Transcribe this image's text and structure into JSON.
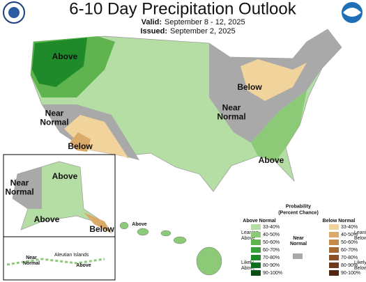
{
  "header": {
    "title": "6-10 Day Precipitation Outlook",
    "valid_label": "Valid:",
    "valid_dates": "September 8 - 12, 2025",
    "issued_label": "Issued:",
    "issued_date": "September 2, 2025"
  },
  "conus_labels": [
    [
      "Above"
    ],
    [
      "Near",
      "Normal"
    ],
    [
      "Below"
    ],
    [
      "Near",
      "Normal"
    ],
    [
      "Below"
    ],
    [
      "Above"
    ]
  ],
  "alaska_labels": [
    [
      "Near",
      "Normal"
    ],
    [
      "Above"
    ],
    [
      "Above"
    ],
    [
      "Below"
    ]
  ],
  "aleutian_labels": [
    [
      "Near",
      "Normal"
    ],
    [
      "Aleutian Islands"
    ],
    [
      "Above"
    ]
  ],
  "hawaii_labels": [
    [
      "Above"
    ]
  ],
  "legend": {
    "title": [
      "Probability",
      "(Percent Chance)"
    ],
    "above_heading": "Above Normal",
    "near_heading": [
      "Near",
      "Normal"
    ],
    "below_heading": "Below Normal",
    "leaning_above": [
      "Leaning",
      "Above"
    ],
    "likely_above": [
      "Likely",
      "Above"
    ],
    "leaning_below": [
      "Leaning",
      "Below"
    ],
    "likely_below": [
      "Likely",
      "Below"
    ],
    "above_bins": [
      {
        "label": "33-40%",
        "color": "#b4dea4"
      },
      {
        "label": "40-50%",
        "color": "#8cca78"
      },
      {
        "label": "50-60%",
        "color": "#5fb44f"
      },
      {
        "label": "60-70%",
        "color": "#38a03a"
      },
      {
        "label": "70-80%",
        "color": "#1e8a2a"
      },
      {
        "label": "80-90%",
        "color": "#0f6e20"
      },
      {
        "label": "90-100%",
        "color": "#074f15"
      }
    ],
    "below_bins": [
      {
        "label": "33-40%",
        "color": "#f1d39c"
      },
      {
        "label": "40-50%",
        "color": "#dcaa68"
      },
      {
        "label": "50-60%",
        "color": "#c48a48"
      },
      {
        "label": "60-70%",
        "color": "#a86a34"
      },
      {
        "label": "70-80%",
        "color": "#8c5028"
      },
      {
        "label": "80-90%",
        "color": "#6e3a1e"
      },
      {
        "label": "90-100%",
        "color": "#4e2614"
      }
    ]
  }
}
